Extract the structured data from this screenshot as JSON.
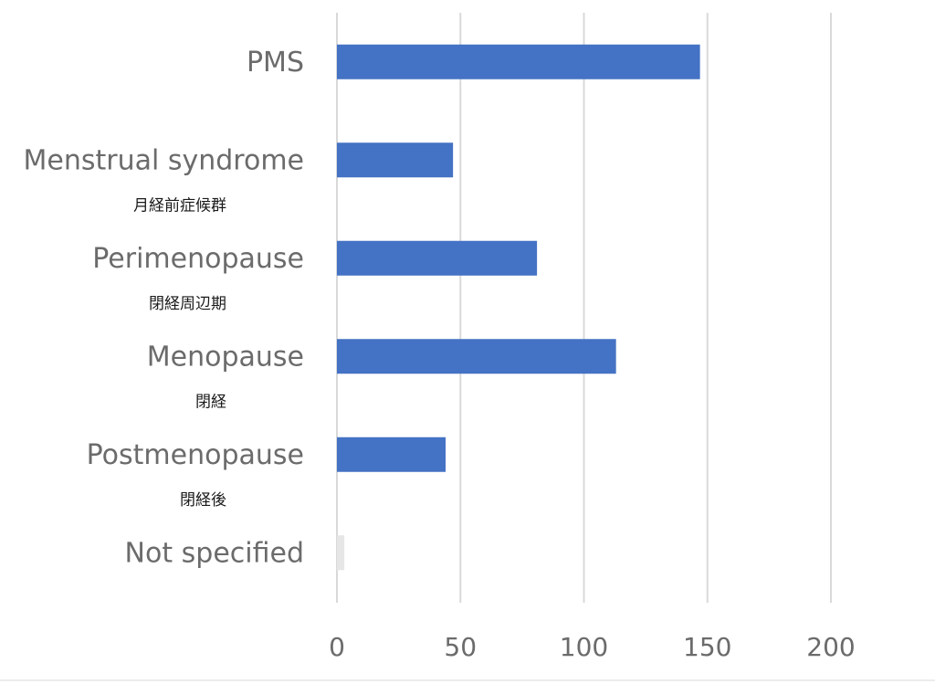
{
  "chart_data": {
    "type": "bar",
    "orientation": "horizontal",
    "categories": [
      {
        "label": "PMS",
        "sublabel": ""
      },
      {
        "label": "Menstrual syndrome",
        "sublabel": "月経前症候群"
      },
      {
        "label": "Perimenopause",
        "sublabel": "閉経周辺期"
      },
      {
        "label": "Menopause",
        "sublabel": "閉経"
      },
      {
        "label": "Postmenopause",
        "sublabel": "閉経後"
      },
      {
        "label": "Not specified",
        "sublabel": ""
      }
    ],
    "values": [
      147,
      47,
      81,
      113,
      44,
      3
    ],
    "bar_colors": [
      "#4472c4",
      "#4472c4",
      "#4472c4",
      "#4472c4",
      "#4472c4",
      "#e6e6e6"
    ],
    "xlim": [
      0,
      200
    ],
    "xticks": [
      0,
      50,
      100,
      150,
      200
    ],
    "grid": true,
    "legend": "none",
    "title": "",
    "xlabel": "",
    "ylabel": ""
  }
}
